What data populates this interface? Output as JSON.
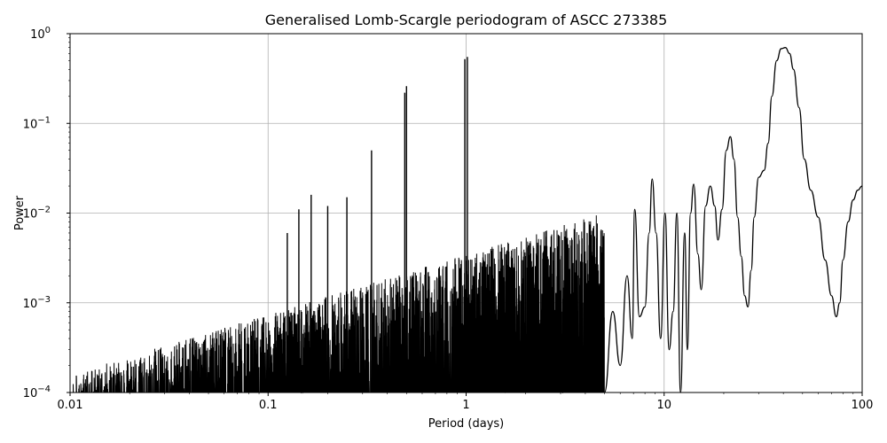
{
  "chart_data": {
    "type": "line",
    "title": "Generalised Lomb-Scargle periodogram of ASCC 273385",
    "xlabel": "Period (days)",
    "ylabel": "Power",
    "xscale": "log",
    "yscale": "log",
    "xlim": [
      0.01,
      100
    ],
    "ylim": [
      0.0001,
      1
    ],
    "grid": true,
    "line_color": "#000000",
    "x_ticks": [
      {
        "value": 0.01,
        "label": "0.01"
      },
      {
        "value": 0.1,
        "label": "0.1"
      },
      {
        "value": 1,
        "label": "1"
      },
      {
        "value": 10,
        "label": "10"
      },
      {
        "value": 100,
        "label": "100"
      }
    ],
    "y_ticks": [
      {
        "value": 0.0001,
        "base": "10",
        "exp": "−4"
      },
      {
        "value": 0.001,
        "base": "10",
        "exp": "−3"
      },
      {
        "value": 0.01,
        "base": "10",
        "exp": "−2"
      },
      {
        "value": 0.1,
        "base": "10",
        "exp": "−1"
      },
      {
        "value": 1,
        "base": "10",
        "exp": "0"
      }
    ],
    "series": [
      {
        "x": [
          5,
          5.5,
          6,
          6.5,
          6.9,
          7.1,
          7.5,
          8.0,
          8.4,
          8.7,
          9.1,
          9.6,
          10.1,
          10.6,
          11.1,
          11.6,
          12.1,
          12.7,
          13.1,
          13.6,
          14.1,
          14.8,
          15.4,
          16.2,
          17.1,
          18.0,
          18.7,
          19.6,
          20.6,
          21.6,
          22.5,
          23.5,
          24.5,
          25.5,
          26.5,
          27.5,
          28.5,
          30,
          32,
          33.5,
          35,
          37,
          39,
          41,
          43,
          45,
          48,
          51,
          55,
          60,
          65,
          70,
          74,
          77,
          80,
          85,
          90,
          95,
          100
        ],
        "y": [
          0.0001,
          0.0008,
          0.0002,
          0.002,
          0.0004,
          0.011,
          0.0007,
          0.0009,
          0.006,
          0.024,
          0.006,
          0.0004,
          0.01,
          0.0003,
          0.0008,
          0.01,
          0.0001,
          0.006,
          0.0003,
          0.01,
          0.021,
          0.0035,
          0.0014,
          0.012,
          0.02,
          0.012,
          0.005,
          0.011,
          0.05,
          0.071,
          0.04,
          0.009,
          0.0033,
          0.0012,
          0.0009,
          0.0023,
          0.009,
          0.025,
          0.03,
          0.06,
          0.2,
          0.5,
          0.68,
          0.7,
          0.6,
          0.4,
          0.15,
          0.04,
          0.018,
          0.009,
          0.003,
          0.0012,
          0.0007,
          0.001,
          0.003,
          0.008,
          0.014,
          0.018,
          0.02
        ]
      }
    ],
    "peaks": [
      {
        "x": 0.333,
        "y": 0.05
      },
      {
        "x": 0.49,
        "y": 0.22
      },
      {
        "x": 0.5,
        "y": 0.26
      },
      {
        "x": 0.985,
        "y": 0.52
      },
      {
        "x": 1.015,
        "y": 0.55
      },
      {
        "x": 0.165,
        "y": 0.016
      },
      {
        "x": 0.2,
        "y": 0.012
      },
      {
        "x": 0.25,
        "y": 0.015
      },
      {
        "x": 0.143,
        "y": 0.011
      },
      {
        "x": 0.125,
        "y": 0.006
      }
    ]
  }
}
